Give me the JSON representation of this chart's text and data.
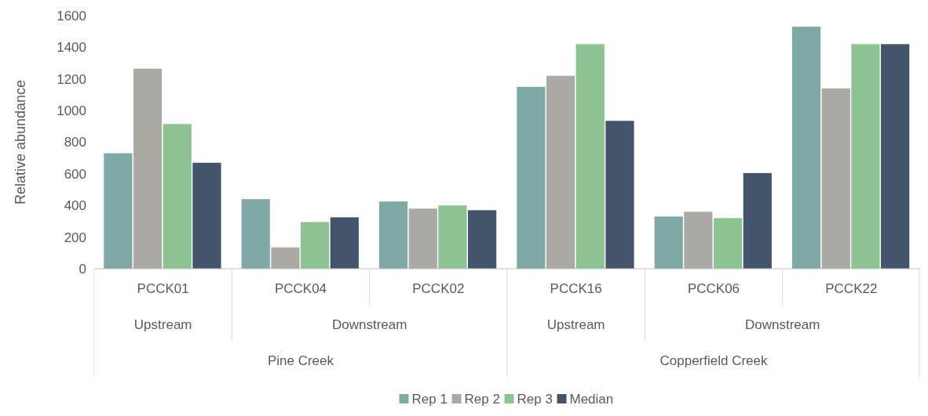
{
  "chart_data": {
    "type": "bar",
    "ylabel": "Relative abundance",
    "categories": [
      "PCCK01",
      "PCCK04",
      "PCCK02",
      "PCCK16",
      "PCCK06",
      "PCCK22"
    ],
    "series": [
      {
        "name": "Rep 1",
        "color": "#7fa9a5",
        "values": [
          730,
          440,
          425,
          1150,
          330,
          1530
        ]
      },
      {
        "name": "Rep 2",
        "color": "#aca8a3",
        "values": [
          1265,
          135,
          380,
          1220,
          360,
          1140
        ]
      },
      {
        "name": "Rep 3",
        "color": "#8bc492",
        "values": [
          915,
          295,
          400,
          1420,
          320,
          1420
        ]
      },
      {
        "name": "Median",
        "color": "#44546a",
        "values": [
          670,
          325,
          370,
          935,
          605,
          1420
        ]
      }
    ],
    "ylim": [
      0,
      1600
    ],
    "yticks": [
      0,
      200,
      400,
      600,
      800,
      1000,
      1200,
      1400,
      1600
    ],
    "grid": false,
    "legend": "bottom",
    "annotations": [
      "Upstream",
      "Downstream",
      "Upstream",
      "Downstream",
      "Pine Creek",
      "Copperfield Creek"
    ]
  }
}
